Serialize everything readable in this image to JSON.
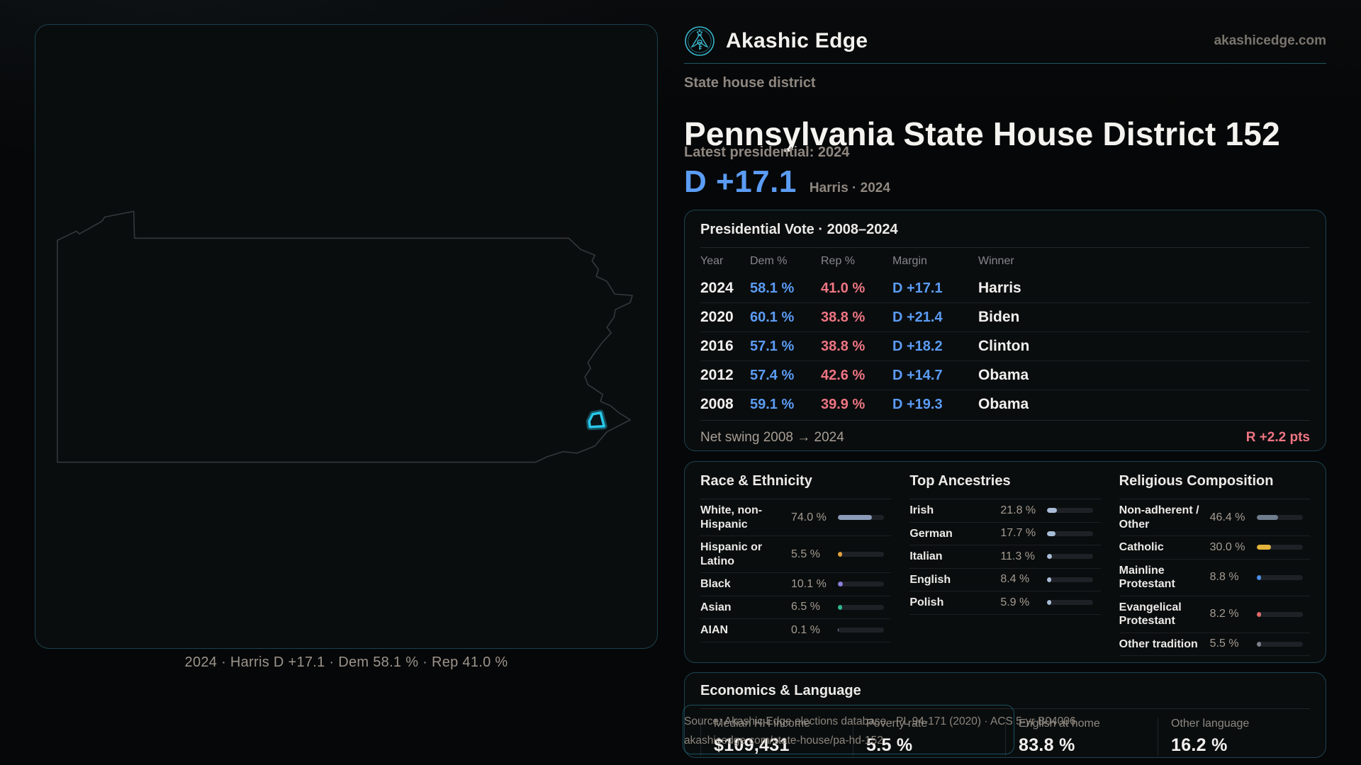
{
  "brand": {
    "name": "Akashic Edge",
    "domain": "akashicedge.com"
  },
  "hero": {
    "kicker": "State house district",
    "title": "Pennsylvania State House District 152",
    "latest": "Latest presidential: 2024",
    "margin": "D +17.1",
    "margin_context": "Harris · 2024"
  },
  "map": {
    "caption": "2024 · Harris D +17.1 · Dem 58.1 % · Rep 41.0 %"
  },
  "presidential": {
    "title": "Presidential Vote · 2008–2024",
    "columns": [
      "Year",
      "Dem %",
      "Rep %",
      "Margin",
      "Winner"
    ],
    "rows": [
      {
        "year": "2024",
        "dem": "58.1 %",
        "rep": "41.0 %",
        "margin": "D +17.1",
        "winner": "Harris"
      },
      {
        "year": "2020",
        "dem": "60.1 %",
        "rep": "38.8 %",
        "margin": "D +21.4",
        "winner": "Biden"
      },
      {
        "year": "2016",
        "dem": "57.1 %",
        "rep": "38.8 %",
        "margin": "D +18.2",
        "winner": "Clinton"
      },
      {
        "year": "2012",
        "dem": "57.4 %",
        "rep": "42.6 %",
        "margin": "D +14.7",
        "winner": "Obama"
      },
      {
        "year": "2008",
        "dem": "59.1 %",
        "rep": "39.9 %",
        "margin": "D +19.3",
        "winner": "Obama"
      }
    ],
    "net_swing_label": "Net swing 2008 → 2024",
    "net_swing_value": "R +2.2 pts"
  },
  "demographics": {
    "race": {
      "title": "Race & Ethnicity",
      "rows": [
        {
          "label": "White, non-Hispanic",
          "value": "74.0 %",
          "pct": 74.0,
          "color": "#8b9cb8"
        },
        {
          "label": "Hispanic or Latino",
          "value": "5.5 %",
          "pct": 5.5,
          "color": "#e2a23b"
        },
        {
          "label": "Black",
          "value": "10.1 %",
          "pct": 10.1,
          "color": "#8b7fd8"
        },
        {
          "label": "Asian",
          "value": "6.5 %",
          "pct": 6.5,
          "color": "#2fb98c"
        },
        {
          "label": "AIAN",
          "value": "0.1 %",
          "pct": 0.1,
          "color": "#8b9cb8"
        }
      ]
    },
    "ancestries": {
      "title": "Top Ancestries",
      "rows": [
        {
          "label": "Irish",
          "value": "21.8 %",
          "pct": 21.8,
          "color": "#a9bdd6"
        },
        {
          "label": "German",
          "value": "17.7 %",
          "pct": 17.7,
          "color": "#a9bdd6"
        },
        {
          "label": "Italian",
          "value": "11.3 %",
          "pct": 11.3,
          "color": "#a9bdd6"
        },
        {
          "label": "English",
          "value": "8.4 %",
          "pct": 8.4,
          "color": "#a9bdd6"
        },
        {
          "label": "Polish",
          "value": "5.9 %",
          "pct": 5.9,
          "color": "#a9bdd6"
        }
      ]
    },
    "religion": {
      "title": "Religious Composition",
      "rows": [
        {
          "label": "Non-adherent / Other",
          "value": "46.4 %",
          "pct": 46.4,
          "color": "#6f7d8e"
        },
        {
          "label": "Catholic",
          "value": "30.0 %",
          "pct": 30.0,
          "color": "#e3b33c"
        },
        {
          "label": "Mainline Protestant",
          "value": "8.8 %",
          "pct": 8.8,
          "color": "#4a8fe8"
        },
        {
          "label": "Evangelical Protestant",
          "value": "8.2 %",
          "pct": 8.2,
          "color": "#e06a6a"
        },
        {
          "label": "Other tradition",
          "value": "5.5 %",
          "pct": 5.5,
          "color": "#7b828c"
        }
      ]
    }
  },
  "economics": {
    "title": "Economics & Language",
    "stats": [
      {
        "label": "Median HH income",
        "value": "$109,431"
      },
      {
        "label": "Poverty rate",
        "value": "5.5 %"
      },
      {
        "label": "English at home",
        "value": "83.8 %"
      },
      {
        "label": "Other language",
        "value": "16.2 %"
      }
    ]
  },
  "source": {
    "line1": "Source: Akashic Edge elections database · PL 94-171 (2020) · ACS 5-yr B04006",
    "line2": "akashicedge.com/state-house/pa-hd-152"
  },
  "colors": {
    "dem_blue": "#5b9cf4",
    "rep_red": "#ef7583",
    "accent_teal": "#2fb3cc",
    "card_border": "#1b4350",
    "district_cyan": "#27c8e8"
  }
}
